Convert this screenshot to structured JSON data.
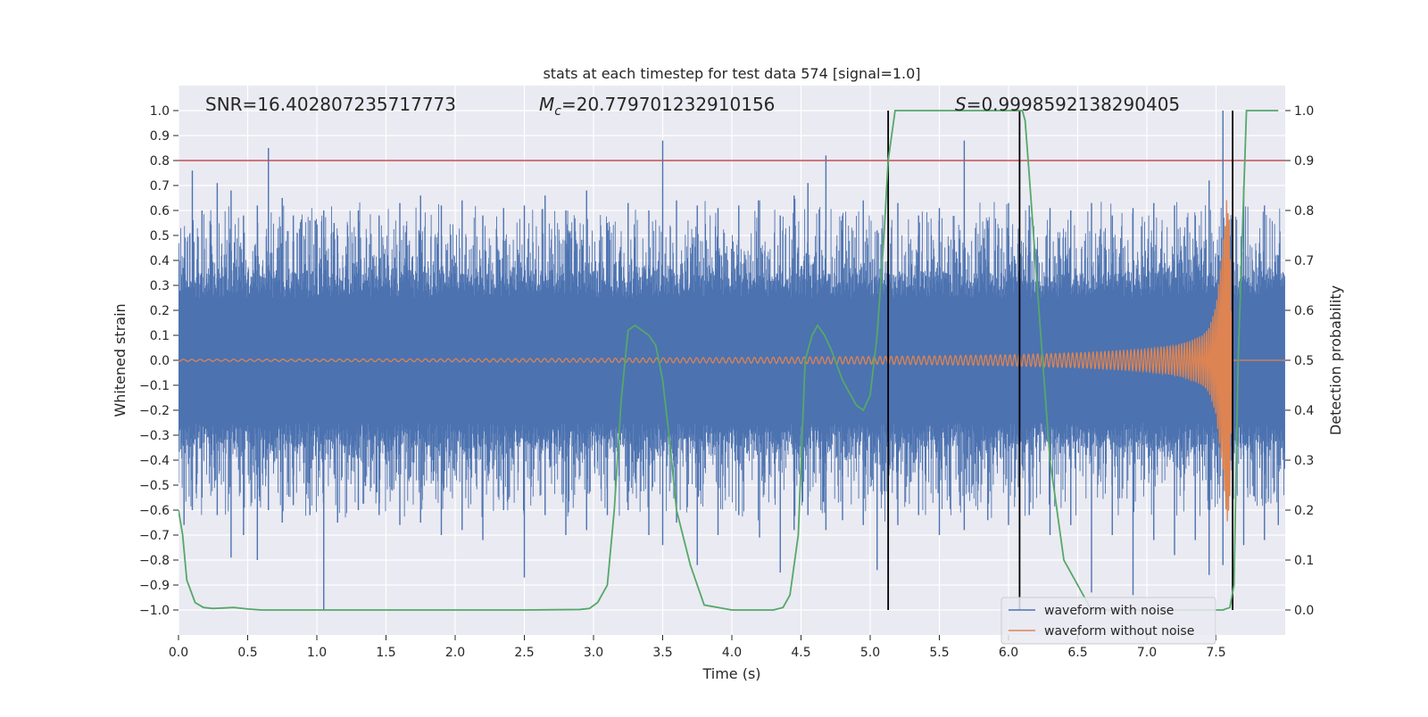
{
  "chart_data": {
    "type": "line",
    "title": "stats at each timestep for test data 574 [signal=1.0]",
    "xlabel": "Time (s)",
    "ylabel": "Whitened strain",
    "y2label": "Detection probability",
    "xlim": [
      0.0,
      8.0
    ],
    "ylim": [
      -1.1,
      1.1
    ],
    "y2lim": [
      -0.05,
      1.05
    ],
    "xticks": [
      "0.0",
      "0.5",
      "1.0",
      "1.5",
      "2.0",
      "2.5",
      "3.0",
      "3.5",
      "4.0",
      "4.5",
      "5.0",
      "5.5",
      "6.0",
      "6.5",
      "7.0",
      "7.5"
    ],
    "yticks": [
      "1.0",
      "0.9",
      "0.8",
      "0.7",
      "0.6",
      "0.5",
      "0.4",
      "0.3",
      "0.2",
      "0.1",
      "0.0",
      "−0.1",
      "−0.2",
      "−0.3",
      "−0.4",
      "−0.5",
      "−0.6",
      "−0.7",
      "−0.8",
      "−0.9",
      "−1.0"
    ],
    "y2ticks": [
      "1.0",
      "0.9",
      "0.8",
      "0.7",
      "0.6",
      "0.5",
      "0.4",
      "0.3",
      "0.2",
      "0.1",
      "0.0"
    ],
    "annotations": {
      "snr": "SNR=16.402807235717773",
      "mc_symbol": "M",
      "mc_sub": "c",
      "mc_value": "=20.779701232910156",
      "s_symbol": "S",
      "s_value": "=0.9998592138290405"
    },
    "threshold": {
      "value": 0.8,
      "color": "#c44e52"
    },
    "vertical_lines": [
      5.13,
      6.08,
      7.62
    ],
    "noise_envelope": {
      "color": "#4c72b0",
      "band": 0.25,
      "spike_times": [
        0.04,
        0.1,
        0.17,
        0.28,
        0.38,
        0.47,
        0.57,
        0.65,
        0.75,
        0.83,
        0.95,
        1.05,
        1.15,
        1.3,
        1.45,
        1.6,
        1.75,
        1.9,
        2.05,
        2.2,
        2.35,
        2.5,
        2.65,
        2.8,
        2.95,
        3.1,
        3.25,
        3.4,
        3.5,
        3.6,
        3.75,
        3.9,
        4.05,
        4.2,
        4.35,
        4.45,
        4.55,
        4.68,
        4.8,
        4.95,
        5.05,
        5.2,
        5.35,
        5.5,
        5.68,
        5.85,
        6.0,
        6.15,
        6.3,
        6.45,
        6.6,
        6.75,
        6.9,
        7.05,
        7.2,
        7.35,
        7.45,
        7.55,
        7.7,
        7.85,
        7.95
      ],
      "spike_max": [
        0.41,
        0.76,
        0.6,
        0.71,
        0.68,
        0.58,
        0.62,
        0.85,
        0.65,
        0.58,
        0.56,
        0.6,
        0.5,
        0.6,
        0.58,
        0.63,
        0.66,
        0.62,
        0.64,
        0.58,
        0.61,
        0.62,
        0.66,
        0.6,
        0.68,
        0.55,
        0.63,
        0.6,
        0.88,
        0.64,
        0.62,
        0.61,
        0.62,
        0.64,
        0.58,
        0.66,
        0.71,
        0.82,
        0.58,
        0.64,
        0.52,
        0.63,
        0.58,
        0.61,
        0.88,
        0.56,
        0.63,
        0.62,
        0.61,
        0.6,
        0.63,
        0.58,
        0.61,
        0.63,
        0.62,
        0.58,
        0.72,
        1.0,
        0.7,
        0.62,
        0.42
      ],
      "spike_min": [
        -0.66,
        -0.6,
        -0.55,
        -0.62,
        -0.79,
        -0.7,
        -0.8,
        -0.6,
        -0.65,
        -0.58,
        -0.62,
        -1.0,
        -0.65,
        -0.6,
        -0.62,
        -0.66,
        -0.65,
        -0.7,
        -0.68,
        -0.72,
        -0.6,
        -0.87,
        -0.62,
        -0.7,
        -0.68,
        -0.62,
        -0.6,
        -0.7,
        -0.74,
        -0.65,
        -0.82,
        -0.7,
        -0.62,
        -0.71,
        -0.85,
        -0.68,
        -0.62,
        -0.68,
        -0.64,
        -0.66,
        -0.84,
        -0.66,
        -0.62,
        -0.7,
        -0.68,
        -0.64,
        -0.66,
        -0.62,
        -0.7,
        -0.66,
        -0.93,
        -0.7,
        -0.94,
        -0.72,
        -0.78,
        -0.72,
        -0.86,
        -0.82,
        -0.74,
        -0.72,
        -0.66
      ]
    },
    "series": [
      {
        "name": "waveform with noise",
        "color": "#4c72b0",
        "axis": "left"
      },
      {
        "name": "waveform without noise",
        "color": "#dd8452",
        "axis": "left",
        "amplitude_t": [
          0.0,
          1.0,
          2.0,
          3.0,
          4.0,
          5.0,
          5.5,
          6.0,
          6.5,
          6.8,
          7.0,
          7.2,
          7.3,
          7.4,
          7.45,
          7.5,
          7.55,
          7.58,
          7.6,
          7.62
        ],
        "amplitude_v": [
          0.004,
          0.005,
          0.006,
          0.008,
          0.011,
          0.015,
          0.018,
          0.022,
          0.03,
          0.038,
          0.045,
          0.06,
          0.075,
          0.1,
          0.13,
          0.22,
          0.45,
          0.68,
          0.55,
          0.0
        ],
        "end_time": 7.62
      },
      {
        "name": "detection probability",
        "color": "#55a868",
        "axis": "right",
        "x": [
          0.0,
          0.03,
          0.06,
          0.12,
          0.18,
          0.25,
          0.4,
          0.5,
          0.6,
          0.8,
          1.2,
          1.8,
          2.5,
          2.9,
          2.97,
          3.03,
          3.1,
          3.15,
          3.2,
          3.25,
          3.3,
          3.35,
          3.4,
          3.45,
          3.5,
          3.55,
          3.6,
          3.7,
          3.8,
          4.0,
          4.2,
          4.3,
          4.37,
          4.42,
          4.48,
          4.53,
          4.58,
          4.62,
          4.67,
          4.72,
          4.8,
          4.9,
          4.95,
          5.0,
          5.05,
          5.1,
          5.13,
          5.18,
          5.2,
          5.25,
          5.4,
          5.6,
          5.8,
          6.05,
          6.1,
          6.12,
          6.15,
          6.22,
          6.3,
          6.4,
          6.6,
          6.9,
          7.2,
          7.4,
          7.5,
          7.55,
          7.6,
          7.63,
          7.66,
          7.72,
          7.8,
          7.95
        ],
        "y": [
          0.2,
          0.15,
          0.06,
          0.015,
          0.005,
          0.003,
          0.005,
          0.002,
          0.0,
          0.0,
          0.0,
          0.0,
          0.0,
          0.001,
          0.003,
          0.015,
          0.05,
          0.2,
          0.42,
          0.56,
          0.57,
          0.56,
          0.55,
          0.53,
          0.46,
          0.34,
          0.2,
          0.09,
          0.01,
          0.0,
          0.0,
          0.0,
          0.005,
          0.03,
          0.15,
          0.5,
          0.55,
          0.57,
          0.55,
          0.52,
          0.46,
          0.41,
          0.4,
          0.43,
          0.55,
          0.75,
          0.9,
          1.0,
          1.0,
          1.0,
          1.0,
          1.0,
          1.0,
          1.0,
          1.0,
          0.98,
          0.87,
          0.6,
          0.3,
          0.1,
          0.0,
          0.0,
          0.0,
          0.0,
          0.0,
          0.0,
          0.005,
          0.05,
          0.5,
          1.0,
          1.0,
          1.0
        ]
      }
    ],
    "legend": {
      "location": "lower-right",
      "entries": [
        {
          "label": "waveform with noise",
          "color": "#4c72b0"
        },
        {
          "label": "waveform without noise",
          "color": "#dd8452"
        }
      ]
    },
    "background_color": "#eaeaf2",
    "grid": true
  }
}
